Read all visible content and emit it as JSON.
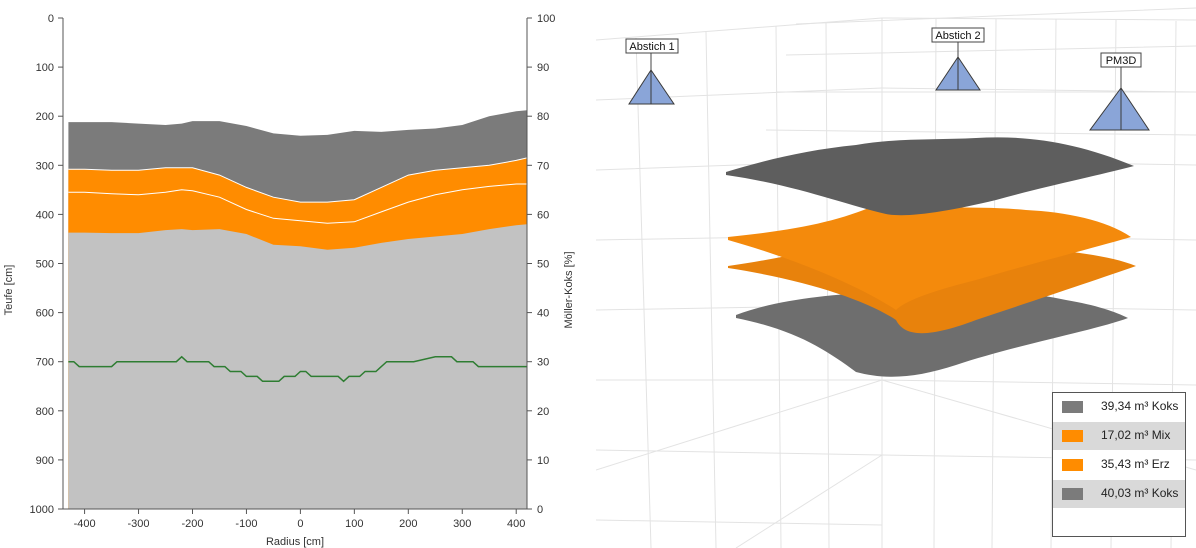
{
  "chart_data": [
    {
      "type": "area",
      "xlabel": "Radius [cm]",
      "ylabel": "Teufe [cm]",
      "y2label": "Möller-Koks [%]",
      "xlim": [
        -440,
        420
      ],
      "ylim": [
        1000,
        0
      ],
      "y2lim": [
        0,
        100
      ],
      "xticks": [
        "-400",
        "-300",
        "-200",
        "-100",
        "0",
        "100",
        "200",
        "300",
        "400"
      ],
      "xtick_values": [
        -400,
        -300,
        -200,
        -100,
        0,
        100,
        200,
        300,
        400
      ],
      "yticks": [
        "0",
        "100",
        "200",
        "300",
        "400",
        "500",
        "600",
        "700",
        "800",
        "900",
        "1000"
      ],
      "ytick_values": [
        0,
        100,
        200,
        300,
        400,
        500,
        600,
        700,
        800,
        900,
        1000
      ],
      "y2ticks": [
        "100",
        "90",
        "80",
        "70",
        "60",
        "50",
        "40",
        "30",
        "20",
        "10",
        "0"
      ],
      "y2tick_values": [
        100,
        90,
        80,
        70,
        60,
        50,
        40,
        30,
        20,
        10,
        0
      ],
      "grid": false,
      "x": [
        -430,
        -400,
        -350,
        -300,
        -250,
        -220,
        -200,
        -150,
        -100,
        -50,
        0,
        50,
        100,
        150,
        200,
        250,
        300,
        350,
        400,
        420
      ],
      "layers": [
        {
          "color": "#7b7b7b",
          "top": [
            212,
            212,
            212,
            215,
            218,
            215,
            210,
            210,
            220,
            235,
            240,
            238,
            230,
            232,
            228,
            225,
            218,
            200,
            190,
            188
          ]
        },
        {
          "color": "#ff8c00",
          "top": [
            308,
            308,
            310,
            310,
            305,
            305,
            305,
            320,
            345,
            365,
            375,
            375,
            370,
            345,
            320,
            310,
            305,
            300,
            290,
            285
          ]
        },
        {
          "color": "#ff8c00",
          "top": [
            355,
            355,
            358,
            360,
            355,
            350,
            352,
            365,
            390,
            408,
            413,
            418,
            415,
            395,
            375,
            360,
            350,
            343,
            338,
            338
          ]
        },
        {
          "color": "#c2c2c2",
          "top": [
            437,
            437,
            438,
            438,
            432,
            430,
            432,
            430,
            440,
            462,
            465,
            472,
            468,
            458,
            450,
            445,
            440,
            430,
            422,
            420
          ]
        }
      ],
      "series": [
        {
          "color": "#2e7d32",
          "axis": "right",
          "x": [
            -430,
            -420,
            -410,
            -350,
            -340,
            -300,
            -230,
            -220,
            -210,
            -170,
            -160,
            -140,
            -130,
            -110,
            -100,
            -80,
            -70,
            -40,
            -30,
            -10,
            0,
            10,
            20,
            70,
            80,
            90,
            110,
            120,
            140,
            150,
            160,
            200,
            210,
            250,
            260,
            280,
            290,
            320,
            330,
            420
          ],
          "y": [
            30,
            30,
            29,
            29,
            30,
            30,
            30,
            31,
            30,
            30,
            29,
            29,
            28,
            28,
            27,
            27,
            26,
            26,
            27,
            27,
            28,
            28,
            27,
            27,
            26,
            27,
            27,
            28,
            28,
            29,
            30,
            30,
            30,
            31,
            31,
            31,
            30,
            30,
            29,
            29
          ]
        }
      ]
    },
    {
      "type": "other",
      "markers": [
        "Abstich 1",
        "Abstich 2",
        "PM3D"
      ],
      "legend": [
        {
          "label": "39,34 m³ Koks",
          "color": "#7b7b7b"
        },
        {
          "label": "17,02 m³ Mix",
          "color": "#ff8c00"
        },
        {
          "label": "35,43 m³ Erz",
          "color": "#ff8c00"
        },
        {
          "label": "40,03 m³ Koks",
          "color": "#7b7b7b"
        }
      ]
    }
  ]
}
